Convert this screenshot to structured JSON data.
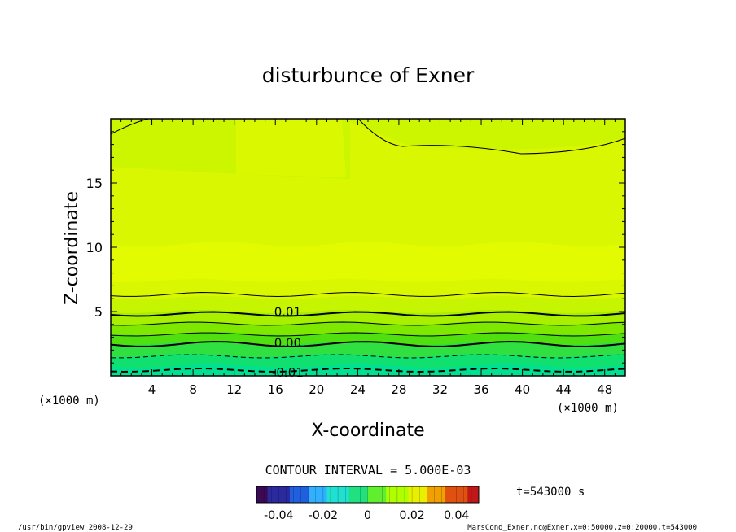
{
  "chart_data": {
    "type": "contour",
    "title": "disturbunce of Exner",
    "xlabel": "X-coordinate",
    "ylabel": "Z-coordinate",
    "x_unit_left": "(×1000 m)",
    "x_unit_right": "(×1000 m)",
    "xlim": [
      0,
      50
    ],
    "ylim": [
      0,
      20
    ],
    "x_ticks": [
      4,
      8,
      12,
      16,
      20,
      24,
      28,
      32,
      36,
      40,
      44,
      48
    ],
    "y_ticks": [
      5,
      10,
      15
    ],
    "contour_levels": [
      {
        "label": "0.01",
        "x": 17.2,
        "y": 4.9
      },
      {
        "label": "0.00",
        "x": 17.2,
        "y": 2.5
      },
      {
        "label": "-0.01",
        "x": 17.2,
        "y": 0.2
      }
    ],
    "contour_interval_text": "CONTOUR INTERVAL = 5.000E-03",
    "colorbar": {
      "ticks": [
        "-0.04",
        "-0.02",
        "0",
        "0.02",
        "0.04"
      ],
      "min": -0.05,
      "max": 0.05,
      "colors": [
        "#3a0a55",
        "#2a2a9e",
        "#2060e0",
        "#30b0ff",
        "#20e0d0",
        "#20e080",
        "#60ef30",
        "#b0ff00",
        "#e8f000",
        "#f0a000",
        "#e05010",
        "#c01818"
      ]
    },
    "time_label": "t=543000 s",
    "fill_colors": {
      "band_top": "#ccf500",
      "band_upper": "#d8f700",
      "band_mid": "#e2fb00",
      "band_low1": "#c5f500",
      "band_low2": "#a8f000",
      "band_low3": "#7ee800",
      "band_low4": "#50e010",
      "band_low5": "#30e040",
      "band_low6": "#10e070",
      "band_bottom": "#00e090"
    }
  },
  "footer": {
    "left": "/usr/bin/gpview   2008-12-29",
    "right": "MarsCond_Exner.nc@Exner,x=0:50000,z=0:20000,t=543000"
  }
}
